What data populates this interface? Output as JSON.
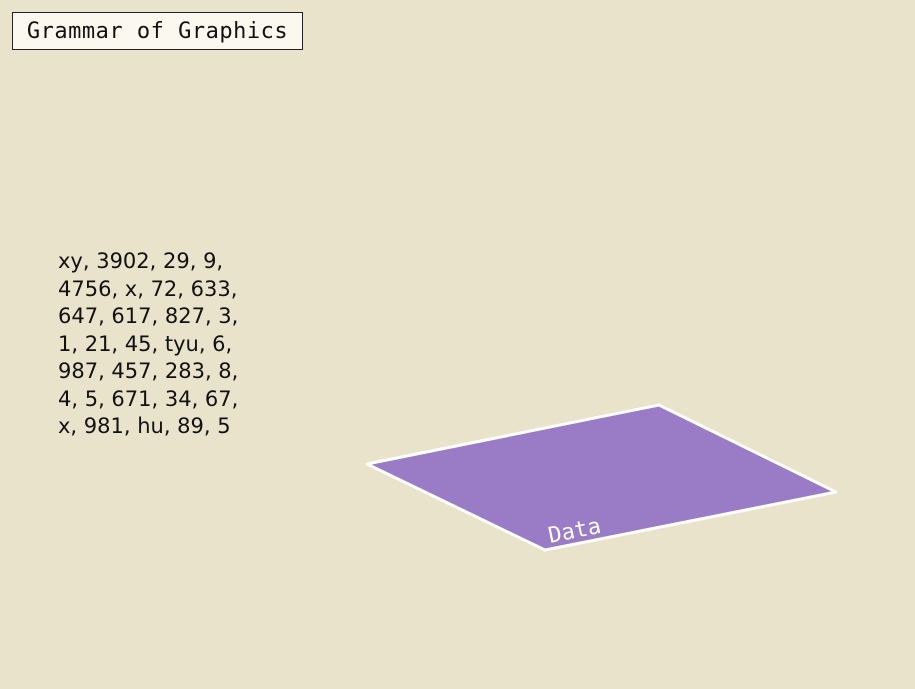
{
  "title": "Grammar of Graphics",
  "data_lines": [
    "xy, 3902, 29, 9,",
    "4756, x, 72, 633,",
    "647, 617, 827, 3,",
    "1, 21, 45, tyu, 6,",
    "987, 457, 283, 8,",
    "4, 5, 671, 34, 67,",
    "x, 981, hu, 89, 5"
  ],
  "plane": {
    "label": "Data",
    "fill": "#9a7bc6",
    "stroke": "#ffffff"
  },
  "colors": {
    "background": "#e9e3cc"
  }
}
